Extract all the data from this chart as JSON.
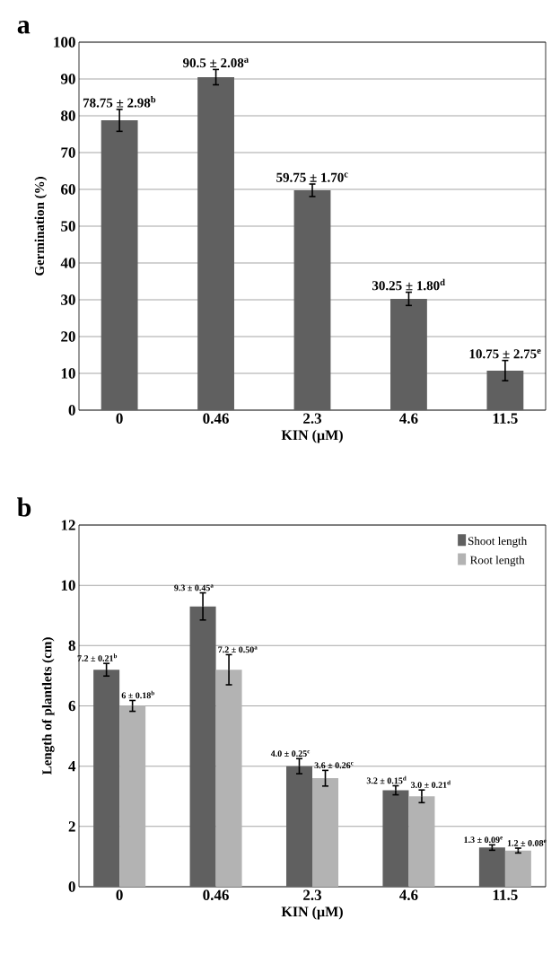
{
  "chart_data": [
    {
      "type": "bar",
      "title": "a",
      "xlabel": "KIN (µM)",
      "ylabel": "Germination (%)",
      "categories": [
        "0",
        "0.46",
        "2.3",
        "4.6",
        "11.5"
      ],
      "values": [
        78.75,
        90.5,
        59.75,
        30.25,
        10.75
      ],
      "errors": [
        2.98,
        2.08,
        1.7,
        1.8,
        2.75
      ],
      "color": "#606060",
      "value_labels": [
        "78.75 ± 2.98$^{b}$",
        "90.5 ± 2.08$^{a}$",
        "59.75 ± 1.70$^{c}$",
        "30.25 ± 1.80$^{d}$",
        "10.75 ± 2.75$^{e}$"
      ],
      "ylim": [
        0,
        100
      ],
      "yticks": [
        0,
        10,
        20,
        30,
        40,
        50,
        60,
        70,
        80,
        90,
        100
      ],
      "grid": "y"
    },
    {
      "type": "bar",
      "title": "b",
      "xlabel": "KIN (µM)",
      "ylabel": "Length of plantlets (cm)",
      "categories": [
        "0",
        "0.46",
        "2.3",
        "4.6",
        "11.5"
      ],
      "series": [
        {
          "name": "Shoot length",
          "color": "#606060",
          "values": [
            7.2,
            9.3,
            4.0,
            3.2,
            1.3
          ],
          "errors": [
            0.21,
            0.45,
            0.25,
            0.15,
            0.09
          ],
          "value_labels": [
            "7.2 ± 0.21$^{b}$",
            "9.3 ± 0.45$^{a}$",
            "4.0 ± 0.25$^{c}$",
            "3.2 ± 0.15$^{d}$",
            "1.3 ± 0.09$^{e}$"
          ]
        },
        {
          "name": "Root length",
          "color": "#b3b3b3",
          "values": [
            6,
            7.2,
            3.6,
            3.0,
            1.2
          ],
          "errors": [
            0.18,
            0.5,
            0.26,
            0.21,
            0.08
          ],
          "value_labels": [
            "6 ± 0.18$^{b}$",
            "7.2 ± 0.50$^{a}$",
            "3.6 ± 0.26$^{c}$",
            "3.0 ± 0.21$^{d}$",
            "1.2 ± 0.08$^{e}$"
          ]
        }
      ],
      "ylim": [
        0,
        12
      ],
      "yticks": [
        0,
        2,
        4,
        6,
        8,
        10,
        12
      ],
      "grid": "y",
      "legend": "top right"
    }
  ]
}
